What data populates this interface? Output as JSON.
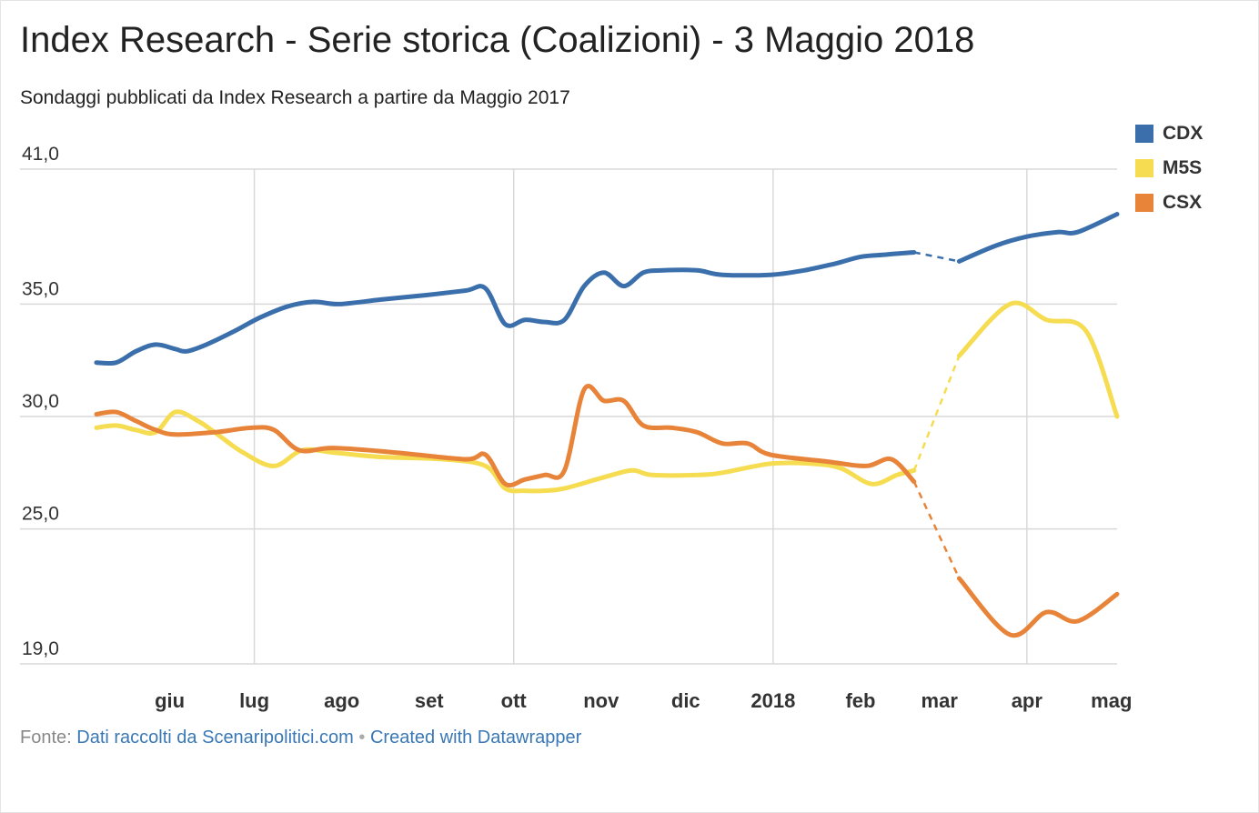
{
  "title": "Index Research - Serie storica (Coalizioni) - 3 Maggio 2018",
  "subtitle": "Sondaggi pubblicati da Index Research a partire da Maggio 2017",
  "footer": {
    "prefix": "Fonte:",
    "source": "Dati raccolti da Scenaripolitici.com",
    "separator": "•",
    "credit": "Created with Datawrapper"
  },
  "chart_data": {
    "type": "line",
    "title": "Index Research - Serie storica (Coalizioni) - 3 Maggio 2018",
    "xlabel": "",
    "ylabel": "",
    "grid": true,
    "legend_position": "top-right",
    "x_domain": [
      "2017-05-06",
      "2018-05-03"
    ],
    "y_ticks": [
      {
        "value": 41,
        "label": "41,0"
      },
      {
        "value": 35,
        "label": "35,0"
      },
      {
        "value": 30,
        "label": "30,0"
      },
      {
        "value": 25,
        "label": "25,0"
      },
      {
        "value": 19,
        "label": "19,0"
      }
    ],
    "ylim": [
      19,
      41
    ],
    "x_ticks": [
      {
        "date": "2017-06-01",
        "label": "giu",
        "major": false
      },
      {
        "date": "2017-07-01",
        "label": "lug",
        "major": true
      },
      {
        "date": "2017-08-01",
        "label": "ago",
        "major": false
      },
      {
        "date": "2017-09-01",
        "label": "set",
        "major": false
      },
      {
        "date": "2017-10-01",
        "label": "ott",
        "major": true
      },
      {
        "date": "2017-11-01",
        "label": "nov",
        "major": false
      },
      {
        "date": "2017-12-01",
        "label": "dic",
        "major": false
      },
      {
        "date": "2018-01-01",
        "label": "2018",
        "major": true
      },
      {
        "date": "2018-02-01",
        "label": "feb",
        "major": false
      },
      {
        "date": "2018-03-01",
        "label": "mar",
        "major": false
      },
      {
        "date": "2018-04-01",
        "label": "apr",
        "major": true
      },
      {
        "date": "2018-05-01",
        "label": "mag",
        "major": false
      }
    ],
    "gap": {
      "from": "2018-02-20",
      "to": "2018-03-08"
    },
    "series": [
      {
        "name": "CDX",
        "color": "#3a6fab",
        "points": [
          [
            "2017-05-06",
            32.4
          ],
          [
            "2017-05-13",
            32.4
          ],
          [
            "2017-05-20",
            32.9
          ],
          [
            "2017-05-27",
            33.2
          ],
          [
            "2017-06-03",
            33.0
          ],
          [
            "2017-06-07",
            32.9
          ],
          [
            "2017-06-14",
            33.2
          ],
          [
            "2017-06-24",
            33.8
          ],
          [
            "2017-07-03",
            34.4
          ],
          [
            "2017-07-13",
            34.9
          ],
          [
            "2017-07-22",
            35.1
          ],
          [
            "2017-07-31",
            35.0
          ],
          [
            "2017-08-15",
            35.2
          ],
          [
            "2017-08-31",
            35.4
          ],
          [
            "2017-09-14",
            35.6
          ],
          [
            "2017-09-21",
            35.7
          ],
          [
            "2017-09-28",
            34.1
          ],
          [
            "2017-10-05",
            34.3
          ],
          [
            "2017-10-12",
            34.2
          ],
          [
            "2017-10-19",
            34.3
          ],
          [
            "2017-10-26",
            35.8
          ],
          [
            "2017-11-02",
            36.4
          ],
          [
            "2017-11-09",
            35.8
          ],
          [
            "2017-11-16",
            36.4
          ],
          [
            "2017-11-23",
            36.5
          ],
          [
            "2017-12-05",
            36.5
          ],
          [
            "2017-12-14",
            36.3
          ],
          [
            "2017-12-31",
            36.3
          ],
          [
            "2018-01-12",
            36.5
          ],
          [
            "2018-01-23",
            36.8
          ],
          [
            "2018-02-01",
            37.1
          ],
          [
            "2018-02-10",
            37.2
          ],
          [
            "2018-02-20",
            37.3
          ],
          [
            "2018-03-08",
            36.9
          ],
          [
            "2018-03-21",
            37.6
          ],
          [
            "2018-04-01",
            38.0
          ],
          [
            "2018-04-12",
            38.2
          ],
          [
            "2018-04-19",
            38.2
          ],
          [
            "2018-05-03",
            39.0
          ]
        ]
      },
      {
        "name": "M5S",
        "color": "#f5dc50",
        "points": [
          [
            "2017-05-06",
            29.5
          ],
          [
            "2017-05-13",
            29.6
          ],
          [
            "2017-05-20",
            29.4
          ],
          [
            "2017-05-27",
            29.3
          ],
          [
            "2017-06-03",
            30.2
          ],
          [
            "2017-06-11",
            29.8
          ],
          [
            "2017-06-18",
            29.2
          ],
          [
            "2017-06-27",
            28.4
          ],
          [
            "2017-07-08",
            27.8
          ],
          [
            "2017-07-18",
            28.5
          ],
          [
            "2017-07-29",
            28.4
          ],
          [
            "2017-08-15",
            28.2
          ],
          [
            "2017-09-06",
            28.1
          ],
          [
            "2017-09-21",
            27.8
          ],
          [
            "2017-09-28",
            26.8
          ],
          [
            "2017-10-05",
            26.7
          ],
          [
            "2017-10-12",
            26.7
          ],
          [
            "2017-10-19",
            26.8
          ],
          [
            "2017-11-02",
            27.3
          ],
          [
            "2017-11-12",
            27.6
          ],
          [
            "2017-11-19",
            27.4
          ],
          [
            "2017-12-05",
            27.4
          ],
          [
            "2017-12-14",
            27.5
          ],
          [
            "2017-12-31",
            27.9
          ],
          [
            "2018-01-15",
            27.9
          ],
          [
            "2018-01-25",
            27.7
          ],
          [
            "2018-02-05",
            27.0
          ],
          [
            "2018-02-14",
            27.4
          ],
          [
            "2018-02-20",
            27.6
          ],
          [
            "2018-03-08",
            32.7
          ],
          [
            "2018-03-26",
            35.0
          ],
          [
            "2018-04-08",
            34.3
          ],
          [
            "2018-04-22",
            33.8
          ],
          [
            "2018-05-03",
            30.0
          ]
        ]
      },
      {
        "name": "CSX",
        "color": "#e8843a",
        "points": [
          [
            "2017-05-06",
            30.1
          ],
          [
            "2017-05-13",
            30.2
          ],
          [
            "2017-05-20",
            29.8
          ],
          [
            "2017-05-27",
            29.4
          ],
          [
            "2017-06-03",
            29.2
          ],
          [
            "2017-06-17",
            29.3
          ],
          [
            "2017-06-30",
            29.5
          ],
          [
            "2017-07-08",
            29.4
          ],
          [
            "2017-07-17",
            28.5
          ],
          [
            "2017-07-29",
            28.6
          ],
          [
            "2017-08-20",
            28.4
          ],
          [
            "2017-09-14",
            28.1
          ],
          [
            "2017-09-21",
            28.3
          ],
          [
            "2017-09-28",
            27.0
          ],
          [
            "2017-10-05",
            27.2
          ],
          [
            "2017-10-12",
            27.4
          ],
          [
            "2017-10-19",
            27.6
          ],
          [
            "2017-10-26",
            31.2
          ],
          [
            "2017-11-02",
            30.7
          ],
          [
            "2017-11-09",
            30.7
          ],
          [
            "2017-11-16",
            29.6
          ],
          [
            "2017-11-26",
            29.5
          ],
          [
            "2017-12-05",
            29.3
          ],
          [
            "2017-12-14",
            28.8
          ],
          [
            "2017-12-23",
            28.8
          ],
          [
            "2017-12-31",
            28.3
          ],
          [
            "2018-01-20",
            28.0
          ],
          [
            "2018-02-03",
            27.8
          ],
          [
            "2018-02-12",
            28.1
          ],
          [
            "2018-02-20",
            27.1
          ],
          [
            "2018-03-08",
            22.8
          ],
          [
            "2018-03-26",
            20.3
          ],
          [
            "2018-04-08",
            21.3
          ],
          [
            "2018-04-19",
            20.9
          ],
          [
            "2018-05-03",
            22.1
          ]
        ]
      }
    ]
  }
}
